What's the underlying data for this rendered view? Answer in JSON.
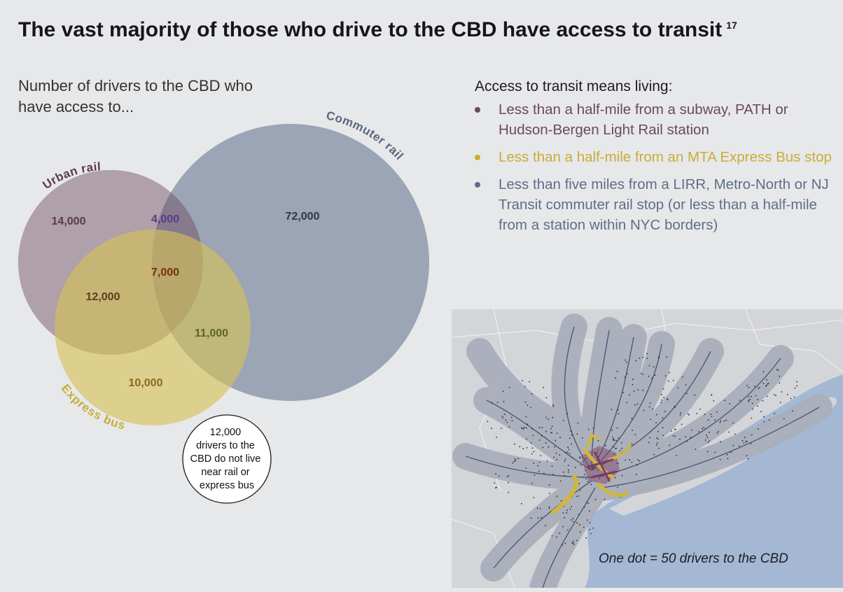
{
  "title": "The vast majority of those who drive to the CBD have access to transit",
  "footnote": "17",
  "chart_data": {
    "type": "venn",
    "subtitle": "Number of drivers to the CBD who have access to...",
    "sets": [
      {
        "name": "Urban rail",
        "color": "#6b4a5c"
      },
      {
        "name": "Commuter rail",
        "color": "#6d7d96"
      },
      {
        "name": "Express bus",
        "color": "#d8c15a"
      }
    ],
    "regions": [
      {
        "sets": [
          "Urban rail"
        ],
        "value": 14000,
        "label": "14,000",
        "color": "#5b3a4c"
      },
      {
        "sets": [
          "Urban rail",
          "Commuter rail"
        ],
        "value": 4000,
        "label": "4,000",
        "color": "#5b3a86"
      },
      {
        "sets": [
          "Commuter rail"
        ],
        "value": 72000,
        "label": "72,000",
        "color": "#2f3646"
      },
      {
        "sets": [
          "Urban rail",
          "Commuter rail",
          "Express bus"
        ],
        "value": 7000,
        "label": "7,000",
        "color": "#7a2e12"
      },
      {
        "sets": [
          "Urban rail",
          "Express bus"
        ],
        "value": 12000,
        "label": "12,000",
        "color": "#5a3c18"
      },
      {
        "sets": [
          "Commuter rail",
          "Express bus"
        ],
        "value": 11000,
        "label": "11,000",
        "color": "#5f6624"
      },
      {
        "sets": [
          "Express bus"
        ],
        "value": 10000,
        "label": "10,000",
        "color": "#8c6a1e"
      }
    ],
    "outside": {
      "value": 12000,
      "lines": [
        "12,000",
        "drivers to the",
        "CBD do not live",
        "near rail or",
        "express bus"
      ]
    }
  },
  "legend": {
    "heading": "Access to transit means living:",
    "items": [
      {
        "text": "Less than a half-mile from a subway, PATH or Hudson-Bergen Light Rail station",
        "color": "#6b4a5c"
      },
      {
        "text": "Less than a half-mile from an MTA Express Bus stop",
        "color": "#c9ad36"
      },
      {
        "text": "Less than five miles from a LIRR, Metro-North or NJ Transit commuter rail stop (or less than a half-mile from a station within NYC borders)",
        "color": "#5f6e88"
      }
    ]
  },
  "map": {
    "caption": "One dot = 50 drivers to the CBD",
    "water_color": "#a4b8d4",
    "land_color": "#d4d5d8",
    "buffer_color": "#a9afbb",
    "rail_color": "#3f4c62",
    "dot_color": "#2b2b2f",
    "urban_rail_color": "#7a3c64",
    "express_bus_color": "#d2b63a"
  }
}
